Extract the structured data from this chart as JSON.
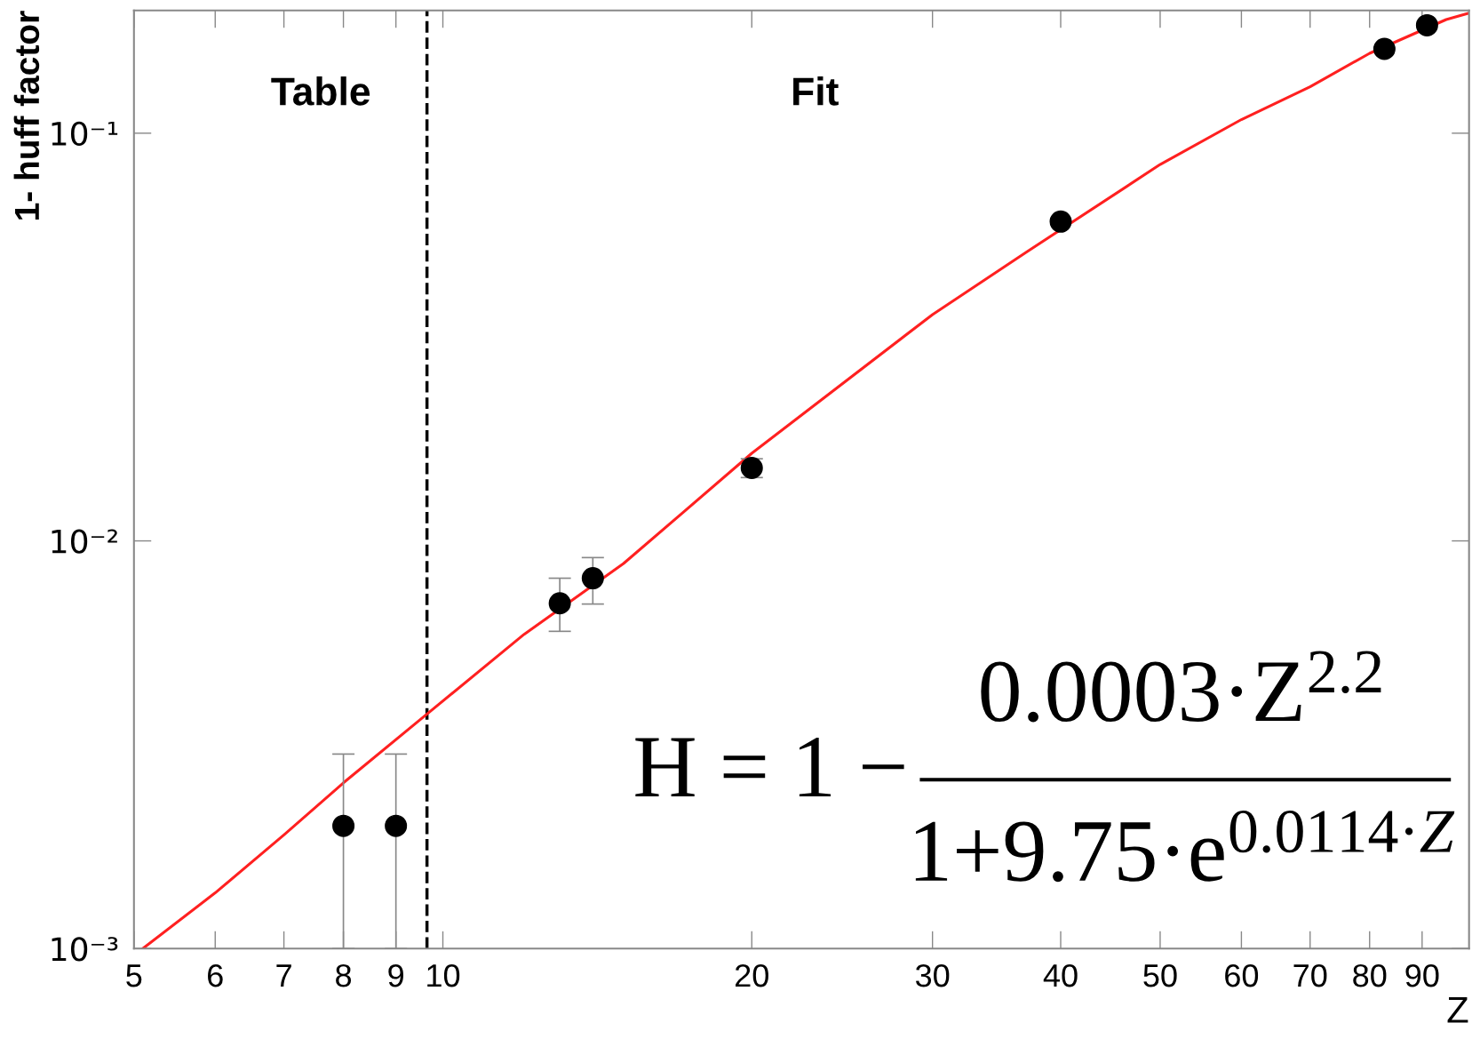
{
  "chart_data": {
    "type": "scatter",
    "xlabel": "Z",
    "ylabel": "1- huff factor",
    "log": "xy",
    "xlim": [
      5,
      100
    ],
    "ylim": [
      0.001,
      0.2
    ],
    "xticks": [
      5,
      6,
      7,
      8,
      9,
      10,
      20,
      30,
      40,
      50,
      60,
      70,
      80,
      90
    ],
    "yticks": [
      {
        "value": 0.001,
        "label": "10⁻³"
      },
      {
        "value": 0.01,
        "label": "10⁻²"
      },
      {
        "value": 0.1,
        "label": "10⁻¹"
      }
    ],
    "grid": false,
    "legend": false,
    "series": [
      {
        "type": "line",
        "color": "#ff2020",
        "line_style": "solid",
        "marker": "none",
        "x": [
          5.1,
          6,
          7,
          8,
          9.65,
          12,
          15,
          20,
          30,
          37,
          50,
          60,
          70,
          80,
          95,
          100
        ],
        "values": [
          0.001,
          0.00137,
          0.0019,
          0.00255,
          0.00376,
          0.0059,
          0.0088,
          0.0164,
          0.0359,
          0.051,
          0.0838,
          0.108,
          0.13,
          0.157,
          0.19,
          0.197
        ]
      },
      {
        "color": "#000000",
        "marker": "circle",
        "x": [
          8,
          9,
          13,
          14,
          20,
          40,
          82.7,
          91
        ],
        "values": [
          0.002,
          0.002,
          0.00703,
          0.0081,
          0.0151,
          0.0607,
          0.161,
          0.184
        ],
        "errors": [
          [
            0.001,
            0.003
          ],
          [
            0.001,
            0.003
          ],
          [
            0.006,
            0.0081
          ],
          [
            0.007,
            0.0091
          ],
          [
            0.0143,
            0.0159
          ],
          null,
          null,
          null
        ]
      }
    ],
    "ref_lines": [
      {
        "axis": "x",
        "value": 9.65,
        "color": "#000000",
        "line_style": "dashed"
      }
    ],
    "annotations": [
      "Table",
      "Fit",
      "H = 1 −",
      "0.0003·Z$^{2.2}$",
      "1+9.75·e$^{0.0114·Z}$"
    ]
  }
}
